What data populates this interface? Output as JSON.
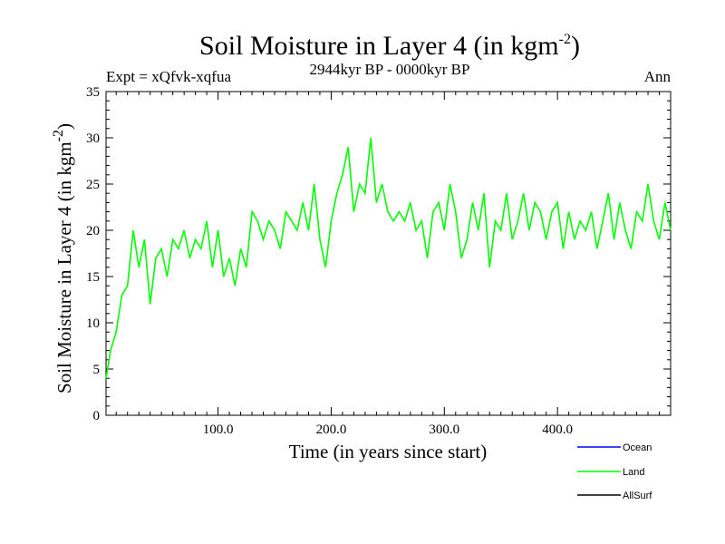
{
  "chart_data": {
    "type": "line",
    "title": "Soil Moisture in Layer 4 (in kgm",
    "title_superscript": "-2",
    "title_close": ")",
    "experiment": "Expt = xQfvk-xqfua",
    "subtitle": "2944kyr BP - 0000kyr BP",
    "season": "Ann",
    "xlabel": "Time (in years since start)",
    "ylabel": "Soil Moisture in Layer 4 (in kgm",
    "ylabel_superscript": "-2",
    "ylabel_close": ")",
    "xlim": [
      1,
      500
    ],
    "ylim": [
      0,
      35
    ],
    "x_ticks": [
      100,
      200,
      300,
      400
    ],
    "x_tick_labels": [
      "100.0",
      "200.0",
      "300.0",
      "400.0"
    ],
    "y_ticks": [
      0,
      5,
      10,
      15,
      20,
      25,
      30,
      35
    ],
    "y_tick_labels": [
      "0",
      "5",
      "10",
      "15",
      "20",
      "25",
      "30",
      "35"
    ],
    "series": [
      {
        "name": "Ocean",
        "color": "#0000ff",
        "values": []
      },
      {
        "name": "Land",
        "color": "#00ff00",
        "x": [
          1,
          5,
          10,
          15,
          20,
          25,
          30,
          35,
          40,
          45,
          50,
          55,
          60,
          65,
          70,
          75,
          80,
          85,
          90,
          95,
          100,
          105,
          110,
          115,
          120,
          125,
          130,
          135,
          140,
          145,
          150,
          155,
          160,
          165,
          170,
          175,
          180,
          185,
          190,
          195,
          200,
          205,
          210,
          215,
          220,
          225,
          230,
          235,
          240,
          245,
          250,
          255,
          260,
          265,
          270,
          275,
          280,
          285,
          290,
          295,
          300,
          305,
          310,
          315,
          320,
          325,
          330,
          335,
          340,
          345,
          350,
          355,
          360,
          365,
          370,
          375,
          380,
          385,
          390,
          395,
          400,
          405,
          410,
          415,
          420,
          425,
          430,
          435,
          440,
          445,
          450,
          455,
          460,
          465,
          470,
          475,
          480,
          485,
          490,
          495,
          500
        ],
        "values": [
          4,
          7,
          9,
          13,
          14,
          20,
          16,
          19,
          12,
          17,
          18,
          15,
          19,
          18,
          20,
          17,
          19,
          18,
          21,
          16,
          20,
          15,
          17,
          14,
          18,
          16,
          22,
          21,
          19,
          21,
          20,
          18,
          22,
          21,
          20,
          23,
          20,
          25,
          19,
          16,
          21,
          24,
          26,
          29,
          22,
          25,
          24,
          30,
          23,
          25,
          22,
          21,
          22,
          21,
          23,
          20,
          21,
          17,
          22,
          23,
          20,
          25,
          22,
          17,
          19,
          23,
          20,
          24,
          16,
          21,
          20,
          24,
          19,
          21,
          24,
          20,
          23,
          22,
          19,
          22,
          23,
          18,
          22,
          19,
          21,
          20,
          22,
          18,
          21,
          24,
          19,
          23,
          20,
          18,
          22,
          21,
          25,
          21,
          19,
          23,
          20
        ]
      },
      {
        "name": "AllSurf",
        "color": "#000000",
        "values": []
      }
    ],
    "legend_position": "bottom-right"
  }
}
